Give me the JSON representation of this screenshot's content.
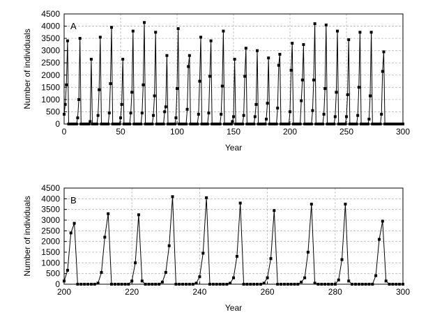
{
  "chart_data": [
    {
      "type": "line",
      "panel_label": "A",
      "xlabel": "Year",
      "ylabel": "Number of individuals",
      "xlim": [
        0,
        300
      ],
      "ylim": [
        0,
        4500
      ],
      "xticks": [
        0,
        50,
        100,
        150,
        200,
        250,
        300
      ],
      "yticks": [
        0,
        500,
        1000,
        1500,
        2000,
        2500,
        3000,
        3500,
        4000,
        4500
      ],
      "grid": true,
      "marker": "square",
      "series": [
        {
          "peaks": [
            {
              "x": 3,
              "rise": [
                150,
                400,
                800,
                1600
              ],
              "peak": 3400
            },
            {
              "x": 14,
              "rise": [
                250,
                1000
              ],
              "peak": 3500
            },
            {
              "x": 24,
              "rise": [
                100
              ],
              "peak": 2650
            },
            {
              "x": 32,
              "rise": [
                350,
                1400
              ],
              "peak": 3550
            },
            {
              "x": 42,
              "rise": [
                450,
                1650
              ],
              "peak": 3950
            },
            {
              "x": 52,
              "rise": [
                250,
                800
              ],
              "peak": 2650
            },
            {
              "x": 61,
              "rise": [
                450,
                1300
              ],
              "peak": 3800
            },
            {
              "x": 71,
              "rise": [
                450,
                1600
              ],
              "peak": 4150
            },
            {
              "x": 81,
              "rise": [
                350,
                1150
              ],
              "peak": 3750
            },
            {
              "x": 91,
              "rise": [
                500,
                700
              ],
              "peak": 2800
            },
            {
              "x": 101,
              "rise": [
                250,
                1450
              ],
              "peak": 3900
            },
            {
              "x": 111,
              "rise": [
                600,
                2350
              ],
              "peak": 2800
            },
            {
              "x": 121,
              "rise": [
                400,
                1750
              ],
              "peak": 3550
            },
            {
              "x": 130,
              "rise": [
                450,
                1950
              ],
              "peak": 3400
            },
            {
              "x": 141,
              "rise": [
                400,
                1550
              ],
              "peak": 3800
            },
            {
              "x": 151,
              "rise": [
                100,
                300
              ],
              "peak": 2650
            },
            {
              "x": 161,
              "rise": [
                350,
                1950
              ],
              "peak": 3100
            },
            {
              "x": 171,
              "rise": [
                300,
                800
              ],
              "peak": 3000
            },
            {
              "x": 181,
              "rise": [
                200,
                850
              ],
              "peak": 2700
            },
            {
              "x": 191,
              "rise": [
                650,
                2400
              ],
              "peak": 2850
            },
            {
              "x": 202,
              "rise": [
                500,
                2200
              ],
              "peak": 3300
            },
            {
              "x": 212,
              "rise": [
                950,
                1800
              ],
              "peak": 3250
            },
            {
              "x": 222,
              "rise": [
                550,
                1800
              ],
              "peak": 4100
            },
            {
              "x": 232,
              "rise": [
                400,
                1450
              ],
              "peak": 4050
            },
            {
              "x": 242,
              "rise": [
                300,
                1300
              ],
              "peak": 3800
            },
            {
              "x": 252,
              "rise": [
                300,
                1200
              ],
              "peak": 3450
            },
            {
              "x": 262,
              "rise": [
                350,
                1500
              ],
              "peak": 3750
            },
            {
              "x": 272,
              "rise": [
                200,
                1150
              ],
              "peak": 3750
            },
            {
              "x": 283,
              "rise": [
                400,
                2150
              ],
              "peak": 2950
            }
          ]
        }
      ]
    },
    {
      "type": "line",
      "panel_label": "B",
      "xlabel": "Year",
      "ylabel": "Number of individuals",
      "xlim": [
        200,
        300
      ],
      "ylim": [
        0,
        4500
      ],
      "xticks": [
        200,
        220,
        240,
        260,
        280,
        300
      ],
      "yticks": [
        0,
        500,
        1000,
        1500,
        2000,
        2500,
        3000,
        3500,
        4000,
        4500
      ],
      "grid": true,
      "marker": "square",
      "series": [
        {
          "x": [
            200,
            201,
            202,
            203,
            204,
            205,
            206,
            207,
            208,
            209,
            210,
            211,
            212,
            213,
            214,
            215,
            216,
            217,
            218,
            219,
            220,
            221,
            222,
            223,
            224,
            225,
            226,
            227,
            228,
            229,
            230,
            231,
            232,
            233,
            234,
            235,
            236,
            237,
            238,
            239,
            240,
            241,
            242,
            243,
            244,
            245,
            246,
            247,
            248,
            249,
            250,
            251,
            252,
            253,
            254,
            255,
            256,
            257,
            258,
            259,
            260,
            261,
            262,
            263,
            264,
            265,
            266,
            267,
            268,
            269,
            270,
            271,
            272,
            273,
            274,
            275,
            276,
            277,
            278,
            279,
            280,
            281,
            282,
            283,
            284,
            285,
            286,
            287,
            288,
            289,
            290,
            291,
            292,
            293,
            294,
            295,
            296,
            297,
            298,
            299,
            300
          ],
          "y": [
            150,
            650,
            2400,
            2850,
            0,
            0,
            0,
            0,
            0,
            0,
            50,
            550,
            2200,
            3300,
            0,
            0,
            0,
            0,
            0,
            0,
            150,
            1000,
            3250,
            150,
            0,
            0,
            0,
            0,
            0,
            100,
            550,
            1800,
            4100,
            0,
            0,
            0,
            0,
            0,
            0,
            50,
            350,
            1450,
            4050,
            0,
            0,
            0,
            0,
            0,
            0,
            50,
            300,
            1300,
            3800,
            0,
            0,
            0,
            0,
            0,
            0,
            50,
            300,
            1200,
            3450,
            0,
            0,
            0,
            0,
            0,
            0,
            0,
            100,
            300,
            1500,
            3750,
            50,
            0,
            0,
            0,
            0,
            0,
            0,
            200,
            1150,
            3750,
            150,
            0,
            0,
            0,
            0,
            0,
            0,
            0,
            400,
            2100,
            2950,
            150,
            0,
            0,
            0,
            0,
            0
          ]
        }
      ]
    }
  ]
}
